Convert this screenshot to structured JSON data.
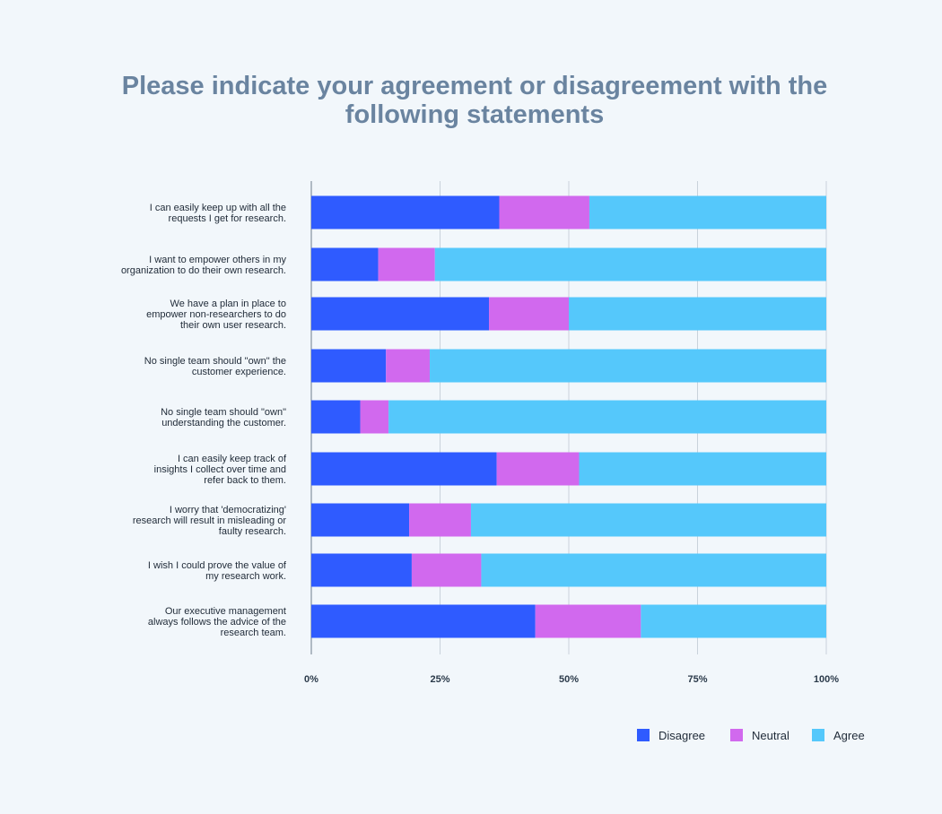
{
  "chart_data": {
    "type": "bar",
    "orientation": "horizontal",
    "stacked": true,
    "title": "Please indicate your agreement or disagreement with the following statements",
    "categories": [
      "I can easily keep up with all the requests I get for research.",
      "I want to empower others in my organization to do their own research.",
      "We have a plan in place to empower non-researchers to do their own user research.",
      "No single team should \"own\" the customer experience.",
      "No single team should \"own\" understanding the customer.",
      "I can easily keep track of insights I collect over time and refer back to them.",
      "I worry that 'democratizing' research will result in misleading or faulty research.",
      "I wish I could prove the value of my research work.",
      "Our executive management always follows the advice of the research team."
    ],
    "category_lines": [
      [
        "I can easily keep up with all the",
        "requests I get for research."
      ],
      [
        "I want to empower others in my",
        "organization to do their own research."
      ],
      [
        "We have a plan in place to",
        "empower non-researchers to do",
        "their own user research."
      ],
      [
        "No single team should \"own\" the",
        "customer experience."
      ],
      [
        "No single team should \"own\"",
        "understanding the customer."
      ],
      [
        "I can easily keep track of",
        "insights I collect over time and",
        "refer back to them."
      ],
      [
        "I worry that 'democratizing'",
        "research will result in misleading or",
        "faulty research."
      ],
      [
        "I wish I could prove the value of",
        "my research work."
      ],
      [
        "Our executive management",
        "always follows the advice of the",
        "research team."
      ]
    ],
    "series": [
      {
        "name": "Disagree",
        "color": "#2f5bff",
        "values": [
          36.5,
          13,
          34.5,
          14.5,
          9.5,
          36,
          19,
          19.5,
          43.5
        ]
      },
      {
        "name": "Neutral",
        "color": "#d169ee",
        "values": [
          17.5,
          11,
          15.5,
          8.5,
          5.5,
          16,
          12,
          13.5,
          20.5
        ]
      },
      {
        "name": "Agree",
        "color": "#55c8fb",
        "values": [
          46,
          76,
          50,
          77,
          85,
          48,
          69,
          67,
          36
        ]
      }
    ],
    "xlim": [
      0,
      100
    ],
    "x_ticks": [
      0,
      25,
      50,
      75,
      100
    ],
    "x_tick_labels": [
      "0%",
      "25%",
      "50%",
      "75%",
      "100%"
    ],
    "grid": true,
    "legend_position": "bottom-right"
  }
}
